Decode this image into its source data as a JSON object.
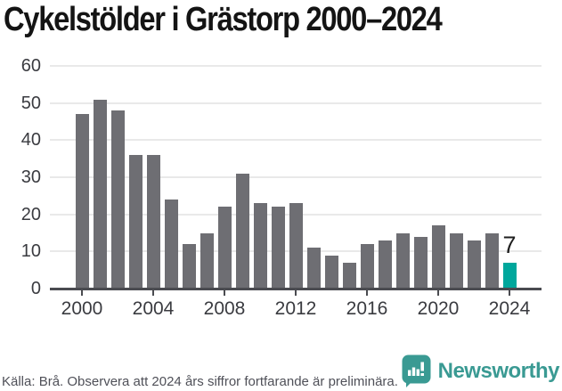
{
  "title": "Cykelstölder i Grästorp 2000–2024",
  "chart_data": {
    "type": "bar",
    "title": "Cykelstölder i Grästorp 2000–2024",
    "x": [
      2000,
      2001,
      2002,
      2003,
      2004,
      2005,
      2006,
      2007,
      2008,
      2009,
      2010,
      2011,
      2012,
      2013,
      2014,
      2015,
      2016,
      2017,
      2018,
      2019,
      2020,
      2021,
      2022,
      2023,
      2024
    ],
    "values": [
      47,
      51,
      48,
      36,
      36,
      24,
      12,
      15,
      22,
      31,
      23,
      22,
      23,
      11,
      9,
      7,
      12,
      13,
      15,
      14,
      17,
      15,
      13,
      15,
      7
    ],
    "highlight_index": 24,
    "highlight_label": "7",
    "xlabel": "",
    "ylabel": "",
    "ylim": [
      0,
      60
    ],
    "y_ticks": [
      0,
      10,
      20,
      30,
      40,
      50,
      60
    ],
    "x_tick_years": [
      2000,
      2004,
      2008,
      2012,
      2016,
      2020,
      2024
    ],
    "grid": "horizontal",
    "legend": "none",
    "colors": {
      "bar": "#6e6e73",
      "highlight": "#00a79c",
      "gridline": "#e9e9e9",
      "axis": "#4a4b50",
      "tick_label": "#3a3b40",
      "value_label": "#1f1f1f"
    }
  },
  "footer": {
    "source_note": "Källa: Brå. Observera att 2024 års siffror fortfarande är preliminära.",
    "brand": {
      "name": "Newsworthy",
      "color": "#3a9a93",
      "icon": "newsworthy-speech-bubble-bars-icon"
    }
  }
}
